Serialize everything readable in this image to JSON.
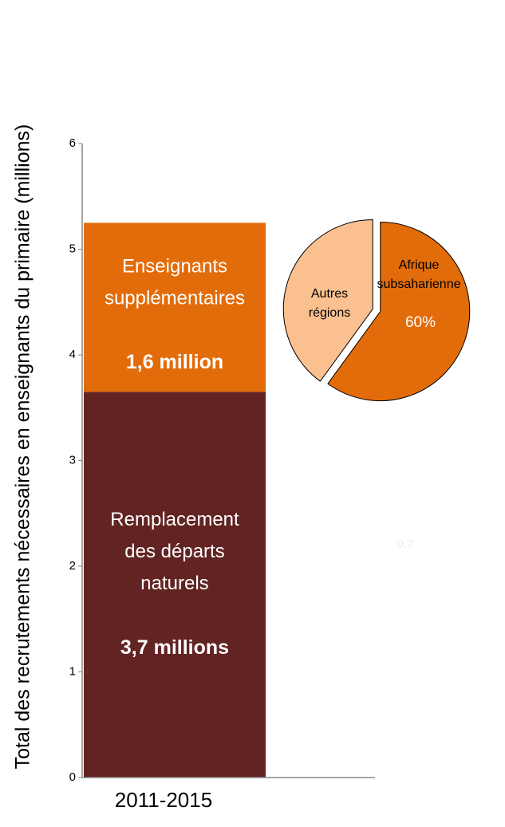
{
  "chart_data": [
    {
      "type": "stacked_bar",
      "y_label": "Total des recrutements nécessaires en enseignants du primaire (millions)",
      "categories": [
        "2011-2015"
      ],
      "series": [
        {
          "name": "Remplacement\ndes départs\nnaturels",
          "color": "#622423",
          "values": [
            3.65
          ],
          "value_labels": [
            "3,7 millions"
          ]
        },
        {
          "name": "Enseignants\nsupplémentaires",
          "color": "#e36c0a",
          "values": [
            1.6
          ],
          "value_labels": [
            "1,6 million"
          ]
        }
      ],
      "ylim": [
        0,
        6
      ],
      "yticks": [
        0,
        1,
        2,
        3,
        4,
        5,
        6
      ],
      "annotations": [
        {
          "text": "0.7",
          "color": "#f4ebea"
        }
      ]
    },
    {
      "type": "pie",
      "labels": [
        "Afrique\nsubsaharienne",
        "Autres\nrégions"
      ],
      "values": [
        60,
        40
      ],
      "value_labels": [
        "60%",
        null
      ],
      "colors": [
        "#e36c0a",
        "#fac090"
      ]
    }
  ]
}
